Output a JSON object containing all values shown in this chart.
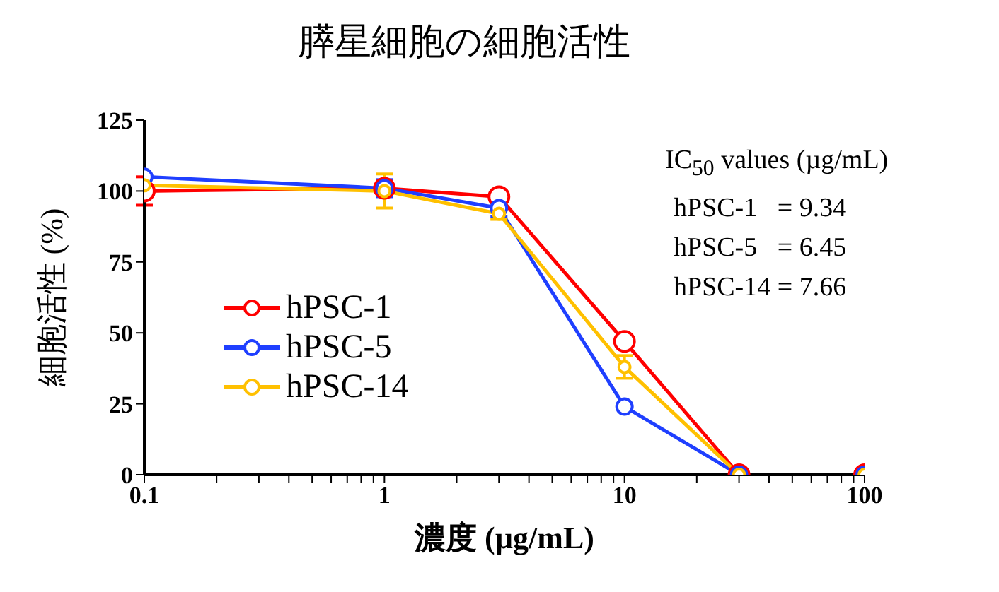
{
  "chart_data": {
    "type": "line",
    "title": "膵星細胞の細胞活性",
    "xlabel": "濃度 (µg/mL)",
    "ylabel": "細胞活性 (%)",
    "x": [
      0.1,
      1,
      3,
      10,
      30,
      100
    ],
    "series": [
      {
        "name": "hPSC-1",
        "color": "#ff0000",
        "values": [
          100,
          101,
          98,
          47,
          0,
          0
        ],
        "errors": [
          5,
          null,
          2,
          2,
          null,
          null
        ]
      },
      {
        "name": "hPSC-5",
        "color": "#1f3fff",
        "values": [
          105,
          101,
          94,
          24,
          0,
          0
        ],
        "errors": [
          null,
          3,
          3,
          null,
          null,
          null
        ]
      },
      {
        "name": "hPSC-14",
        "color": "#ffc000",
        "values": [
          102,
          100,
          92,
          38,
          0,
          0
        ],
        "errors": [
          null,
          6,
          2,
          4,
          null,
          null
        ]
      }
    ],
    "log": "x",
    "xlim": [
      0.1,
      100
    ],
    "xticks": [
      0.1,
      {
        "value": 0.2,
        "label": null
      },
      {
        "value": 0.3,
        "label": null
      },
      {
        "value": 0.4,
        "label": null
      },
      {
        "value": 0.5,
        "label": null
      },
      {
        "value": 0.6,
        "label": null
      },
      {
        "value": 0.7,
        "label": null
      },
      {
        "value": 0.8,
        "label": null
      },
      {
        "value": 0.9,
        "label": null
      },
      1,
      {
        "value": 2,
        "label": null
      },
      {
        "value": 3,
        "label": null
      },
      {
        "value": 4,
        "label": null
      },
      {
        "value": 5,
        "label": null
      },
      {
        "value": 6,
        "label": null
      },
      {
        "value": 7,
        "label": null
      },
      {
        "value": 8,
        "label": null
      },
      {
        "value": 9,
        "label": null
      },
      10,
      {
        "value": 20,
        "label": null
      },
      {
        "value": 30,
        "label": null
      },
      {
        "value": 40,
        "label": null
      },
      {
        "value": 50,
        "label": null
      },
      {
        "value": 60,
        "label": null
      },
      {
        "value": 70,
        "label": null
      },
      {
        "value": 80,
        "label": null
      },
      {
        "value": 90,
        "label": null
      },
      100
    ],
    "ylim": [
      0,
      125
    ],
    "yticks": [
      0,
      25,
      50,
      75,
      100,
      125
    ],
    "grid": false,
    "legend": "left",
    "marker": "circle",
    "line_style": "solid",
    "annotations": [
      "IC$_{50}$ values (µg/mL)",
      "hPSC-1   = 9.34",
      "hPSC-5   = 6.45",
      "hPSC-14 = 7.66"
    ]
  }
}
